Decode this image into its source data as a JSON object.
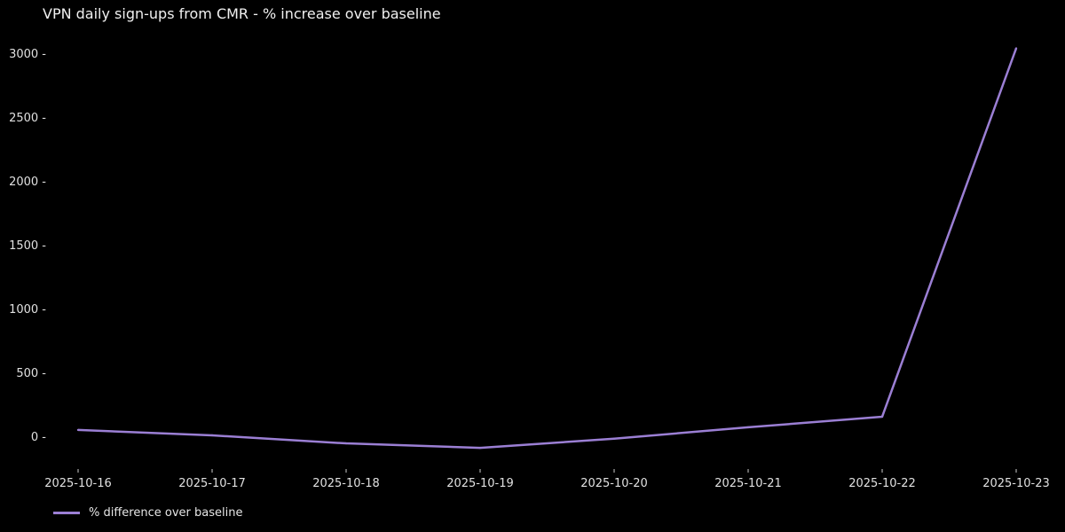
{
  "chart_data": {
    "type": "line",
    "title": "VPN daily sign-ups from CMR - % increase over baseline",
    "xlabel": "",
    "ylabel": "",
    "x": [
      "2025-10-16",
      "2025-10-17",
      "2025-10-18",
      "2025-10-19",
      "2025-10-20",
      "2025-10-21",
      "2025-10-22",
      "2025-10-23"
    ],
    "series": [
      {
        "name": "% difference over baseline",
        "values": [
          56,
          14,
          -49,
          -84,
          -12,
          77,
          160,
          3045
        ],
        "color": "#9b7fd4"
      }
    ],
    "yticks": [
      0,
      500,
      1000,
      1500,
      2000,
      2500,
      3000
    ],
    "ylim": [
      -250,
      3150
    ],
    "grid": false,
    "legend": "bottom-left",
    "background": "#000000"
  }
}
